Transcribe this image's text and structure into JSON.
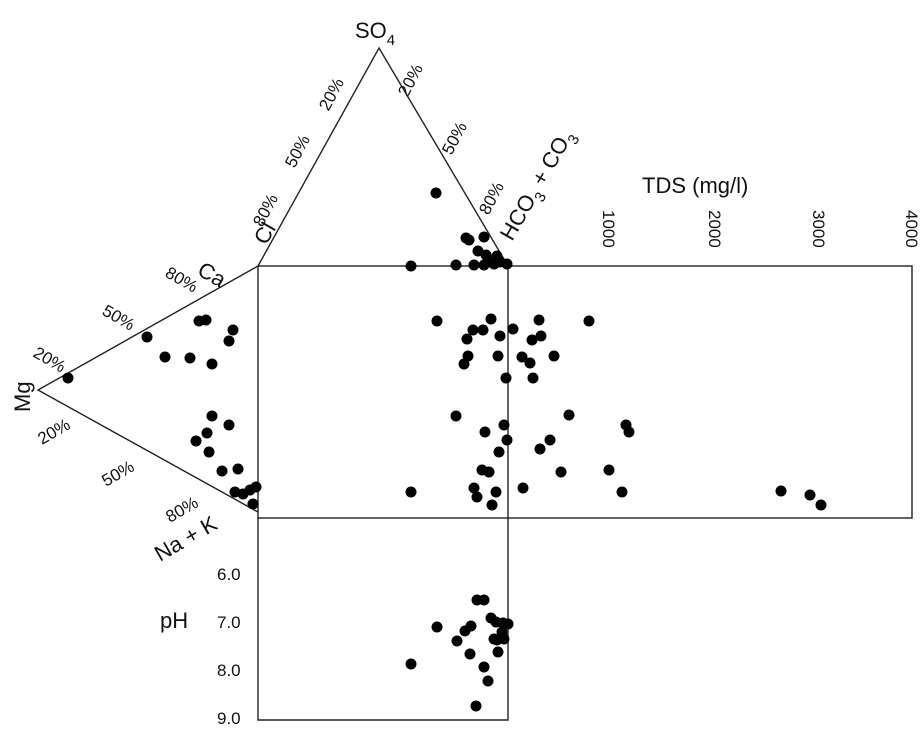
{
  "triangles": {
    "anion": {
      "apex_label": "SO",
      "apex_subscript": "4",
      "right_label_parts": [
        "HCO",
        "3",
        " + CO",
        "3"
      ],
      "left_label": "Cl",
      "left_edge_ticks": [
        "20%",
        "50%",
        "80%"
      ],
      "right_edge_ticks": [
        "20%",
        "50%",
        "80%"
      ]
    },
    "cation": {
      "top_label": "Ca",
      "left_label": "Mg",
      "bottom_label": "Na + K",
      "upper_edge_ticks": [
        "20%",
        "50%",
        "80%"
      ],
      "lower_edge_ticks": [
        "20%",
        "50%",
        "80%"
      ]
    }
  },
  "tds_axis": {
    "title": "TDS (mg/l)",
    "ticks": [
      "1000",
      "2000",
      "3000",
      "4000"
    ]
  },
  "ph_axis": {
    "title": "pH",
    "ticks": [
      "6.0",
      "7.0",
      "8.0",
      "9.0"
    ]
  },
  "chart_data": {
    "type": "scatter",
    "anion_points": [
      [
        436,
        193
      ],
      [
        466,
        238
      ],
      [
        469,
        240
      ],
      [
        484,
        237
      ],
      [
        478,
        251
      ],
      [
        486,
        255
      ],
      [
        497,
        256
      ],
      [
        490,
        262
      ],
      [
        484,
        265
      ],
      [
        494,
        264
      ],
      [
        500,
        262
      ],
      [
        507,
        264
      ],
      [
        474,
        265
      ],
      [
        456,
        265
      ]
    ],
    "cation_points": [
      [
        68,
        378
      ],
      [
        147,
        337
      ],
      [
        165,
        357
      ],
      [
        199,
        321
      ],
      [
        206,
        320
      ],
      [
        233,
        330
      ],
      [
        229,
        341
      ],
      [
        190,
        358
      ],
      [
        212,
        364
      ],
      [
        212,
        416
      ],
      [
        229,
        425
      ],
      [
        207,
        433
      ],
      [
        196,
        441
      ],
      [
        209,
        452
      ],
      [
        222,
        471
      ],
      [
        238,
        469
      ],
      [
        250,
        490
      ],
      [
        243,
        494
      ],
      [
        235,
        492
      ],
      [
        256,
        487
      ],
      [
        253,
        504
      ]
    ],
    "diamond_points": [
      [
        411,
        266
      ],
      [
        437,
        321
      ],
      [
        491,
        319
      ],
      [
        473,
        330
      ],
      [
        483,
        330
      ],
      [
        513,
        329
      ],
      [
        539,
        320
      ],
      [
        589,
        321
      ],
      [
        467,
        339
      ],
      [
        500,
        336
      ],
      [
        532,
        340
      ],
      [
        541,
        336
      ],
      [
        468,
        356
      ],
      [
        464,
        364
      ],
      [
        498,
        356
      ],
      [
        522,
        357
      ],
      [
        530,
        363
      ],
      [
        554,
        356
      ],
      [
        506,
        378
      ],
      [
        533,
        378
      ],
      [
        456,
        416
      ],
      [
        504,
        425
      ],
      [
        569,
        415
      ],
      [
        626,
        425
      ],
      [
        629,
        432
      ],
      [
        485,
        432
      ],
      [
        507,
        440
      ],
      [
        550,
        440
      ],
      [
        499,
        452
      ],
      [
        540,
        449
      ],
      [
        482,
        470
      ],
      [
        489,
        472
      ],
      [
        609,
        470
      ],
      [
        561,
        472
      ],
      [
        474,
        488
      ],
      [
        496,
        492
      ],
      [
        523,
        488
      ],
      [
        411,
        492
      ],
      [
        477,
        497
      ],
      [
        492,
        505
      ],
      [
        622,
        492
      ],
      [
        781,
        491
      ],
      [
        810,
        495
      ],
      [
        821,
        505
      ]
    ],
    "tds_ph_points": [
      [
        477,
        600
      ],
      [
        484,
        600
      ],
      [
        491,
        618
      ],
      [
        496,
        622
      ],
      [
        503,
        623
      ],
      [
        508,
        624
      ],
      [
        471,
        626
      ],
      [
        502,
        632
      ],
      [
        465,
        631
      ],
      [
        457,
        641
      ],
      [
        494,
        639
      ],
      [
        497,
        640
      ],
      [
        504,
        639
      ],
      [
        437,
        627
      ],
      [
        411,
        664
      ],
      [
        470,
        654
      ],
      [
        498,
        652
      ],
      [
        484,
        667
      ],
      [
        488,
        681
      ],
      [
        476,
        706
      ]
    ]
  }
}
